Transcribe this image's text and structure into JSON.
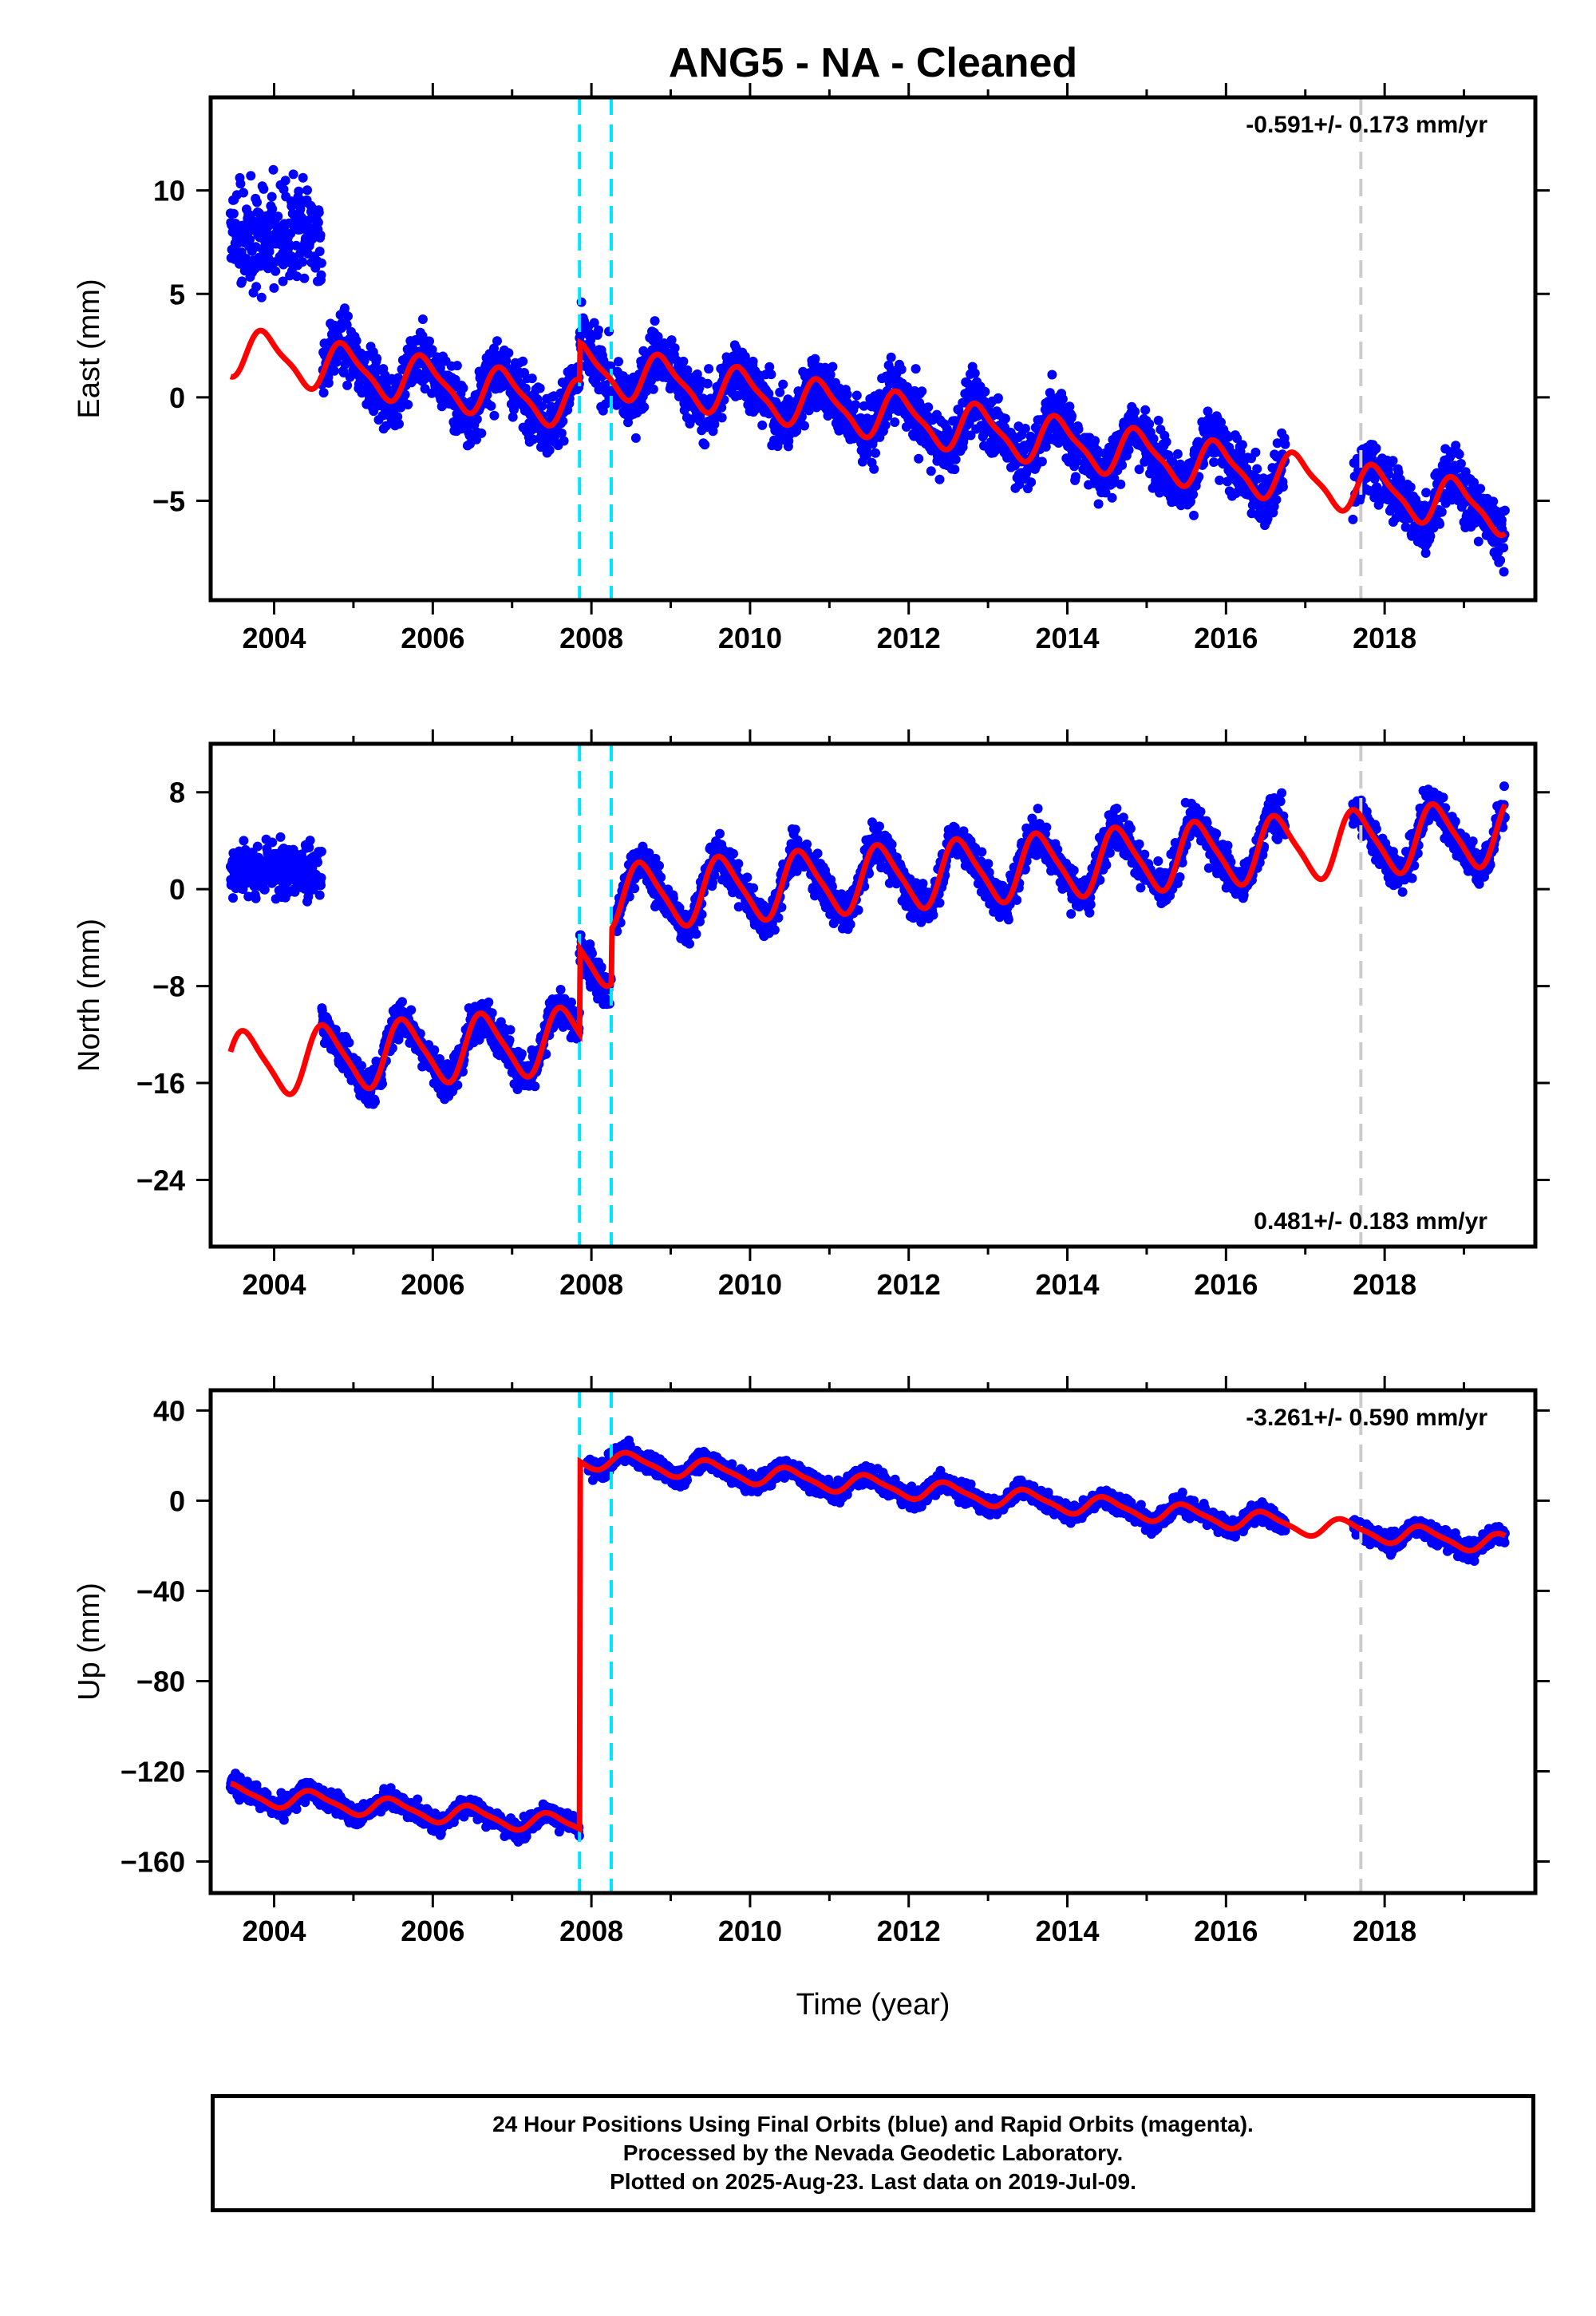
{
  "title": "ANG5  - NA - Cleaned",
  "colors": {
    "dots": "#0000ff",
    "fit": "#ff0000",
    "offset_equipment": "#00e5ff",
    "offset_other": "#cccccc",
    "frame": "#000000"
  },
  "xlabel": "Time (year)",
  "footer": {
    "line1": "24 Hour Positions Using Final Orbits (blue) and Rapid Orbits (magenta).",
    "line2": "Processed by the Nevada Geodetic Laboratory.",
    "line3": "Plotted on 2025-Aug-23. Last data on 2019-Jul-09."
  },
  "chart_data": [
    {
      "type": "scatter",
      "component": "east",
      "ylabel": "East (mm)",
      "xlim": [
        2003.2,
        2019.9
      ],
      "ylim": [
        -9.8,
        14.5
      ],
      "xticks": [
        2004,
        2006,
        2008,
        2010,
        2012,
        2014,
        2016,
        2018
      ],
      "yticks": [
        -5,
        0,
        5,
        10
      ],
      "rate_label": "-0.591+/- 0.173 mm/yr",
      "rate_position": "top-right",
      "offsets_cyan": [
        2007.85,
        2008.25
      ],
      "offsets_gray": [
        2017.7
      ],
      "data_segments": [
        [
          2003.45,
          2008.25
        ],
        [
          2008.3,
          2016.75
        ],
        [
          2017.6,
          2019.52
        ]
      ],
      "fit": {
        "breaks": [
          2007.85
        ],
        "levels": [
          2.2,
          4.0
        ],
        "rate": -0.591,
        "ref_year": 2003.5,
        "annual_amp": 1.1,
        "annual_phase": 0.35,
        "semi_amp": 0.3
      },
      "scatter": {
        "spread": 2.2,
        "outliers": [
          [
            2003.4,
            2004.6,
            7.8,
            2.0
          ]
        ]
      }
    },
    {
      "type": "scatter",
      "component": "north",
      "ylabel": "North (mm)",
      "xlim": [
        2003.2,
        2019.9
      ],
      "ylim": [
        -29.5,
        12
      ],
      "xticks": [
        2004,
        2006,
        2008,
        2010,
        2012,
        2014,
        2016,
        2018
      ],
      "yticks": [
        -24,
        -16,
        -8,
        0,
        8
      ],
      "rate_label": "0.481+/- 0.183 mm/yr",
      "rate_position": "bottom-right",
      "offsets_cyan": [
        2007.85,
        2008.25
      ],
      "offsets_gray": [
        2017.7
      ],
      "data_segments": [
        [
          2003.45,
          2008.25
        ],
        [
          2008.3,
          2016.75
        ],
        [
          2017.6,
          2019.52
        ]
      ],
      "fit": {
        "breaks": [
          2007.85,
          2008.25
        ],
        "levels": [
          -14.5,
          -7.5,
          -3.0
        ],
        "rate": 0.481,
        "ref_year": 2003.5,
        "annual_amp": 2.6,
        "annual_phase": 0.6,
        "semi_amp": 0.5
      },
      "scatter": {
        "spread": 2.5,
        "outliers": [
          [
            2003.4,
            2004.6,
            1.5,
            1.8
          ]
        ]
      }
    },
    {
      "type": "scatter",
      "component": "up",
      "ylabel": "Up (mm)",
      "xlim": [
        2003.2,
        2019.9
      ],
      "ylim": [
        -174,
        49
      ],
      "xticks": [
        2004,
        2006,
        2008,
        2010,
        2012,
        2014,
        2016,
        2018
      ],
      "yticks": [
        -160,
        -120,
        -80,
        -40,
        0,
        40
      ],
      "rate_label": "-3.261+/- 0.590 mm/yr",
      "rate_position": "top-right",
      "offsets_cyan": [
        2007.85,
        2008.25
      ],
      "offsets_gray": [
        2017.7
      ],
      "data_segments": [
        [
          2003.45,
          2007.85
        ],
        [
          2007.95,
          2016.75
        ],
        [
          2017.6,
          2019.52
        ]
      ],
      "fit": {
        "breaks": [
          2007.85
        ],
        "levels": [
          -130,
          33
        ],
        "rate": -3.261,
        "ref_year": 2003.5,
        "annual_amp": 4.0,
        "annual_phase": 0.75,
        "semi_amp": 1.0
      },
      "scatter": {
        "spread": 6.5,
        "outliers": []
      }
    }
  ]
}
